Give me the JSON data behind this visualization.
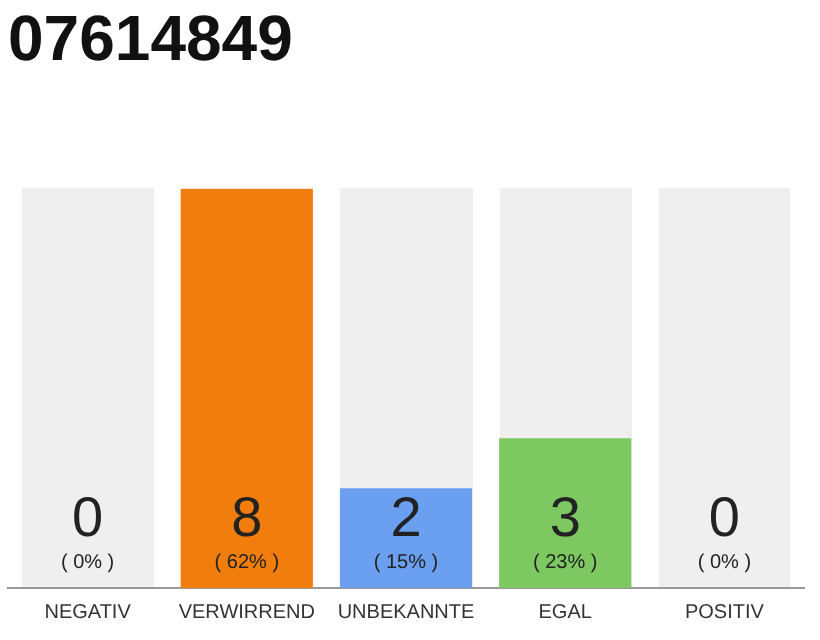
{
  "chart_data": {
    "type": "bar",
    "title": "07614849",
    "categories": [
      "NEGATIV",
      "VERWIRREND",
      "UNBEKANNTE",
      "EGAL",
      "POSITIV"
    ],
    "values": [
      0,
      8,
      2,
      3,
      0
    ],
    "colors": [
      "#d9d9d9",
      "#f07d0c",
      "#6b9ff0",
      "#7ec862",
      "#d9d9d9"
    ],
    "ylim": [
      0,
      8
    ],
    "tick_labels": "x",
    "data_labels": true,
    "grid": false,
    "legend": false,
    "annotations": [
      "( 0% )",
      "( 62% )",
      "( 15% )",
      "( 23% )",
      "( 0% )"
    ]
  }
}
